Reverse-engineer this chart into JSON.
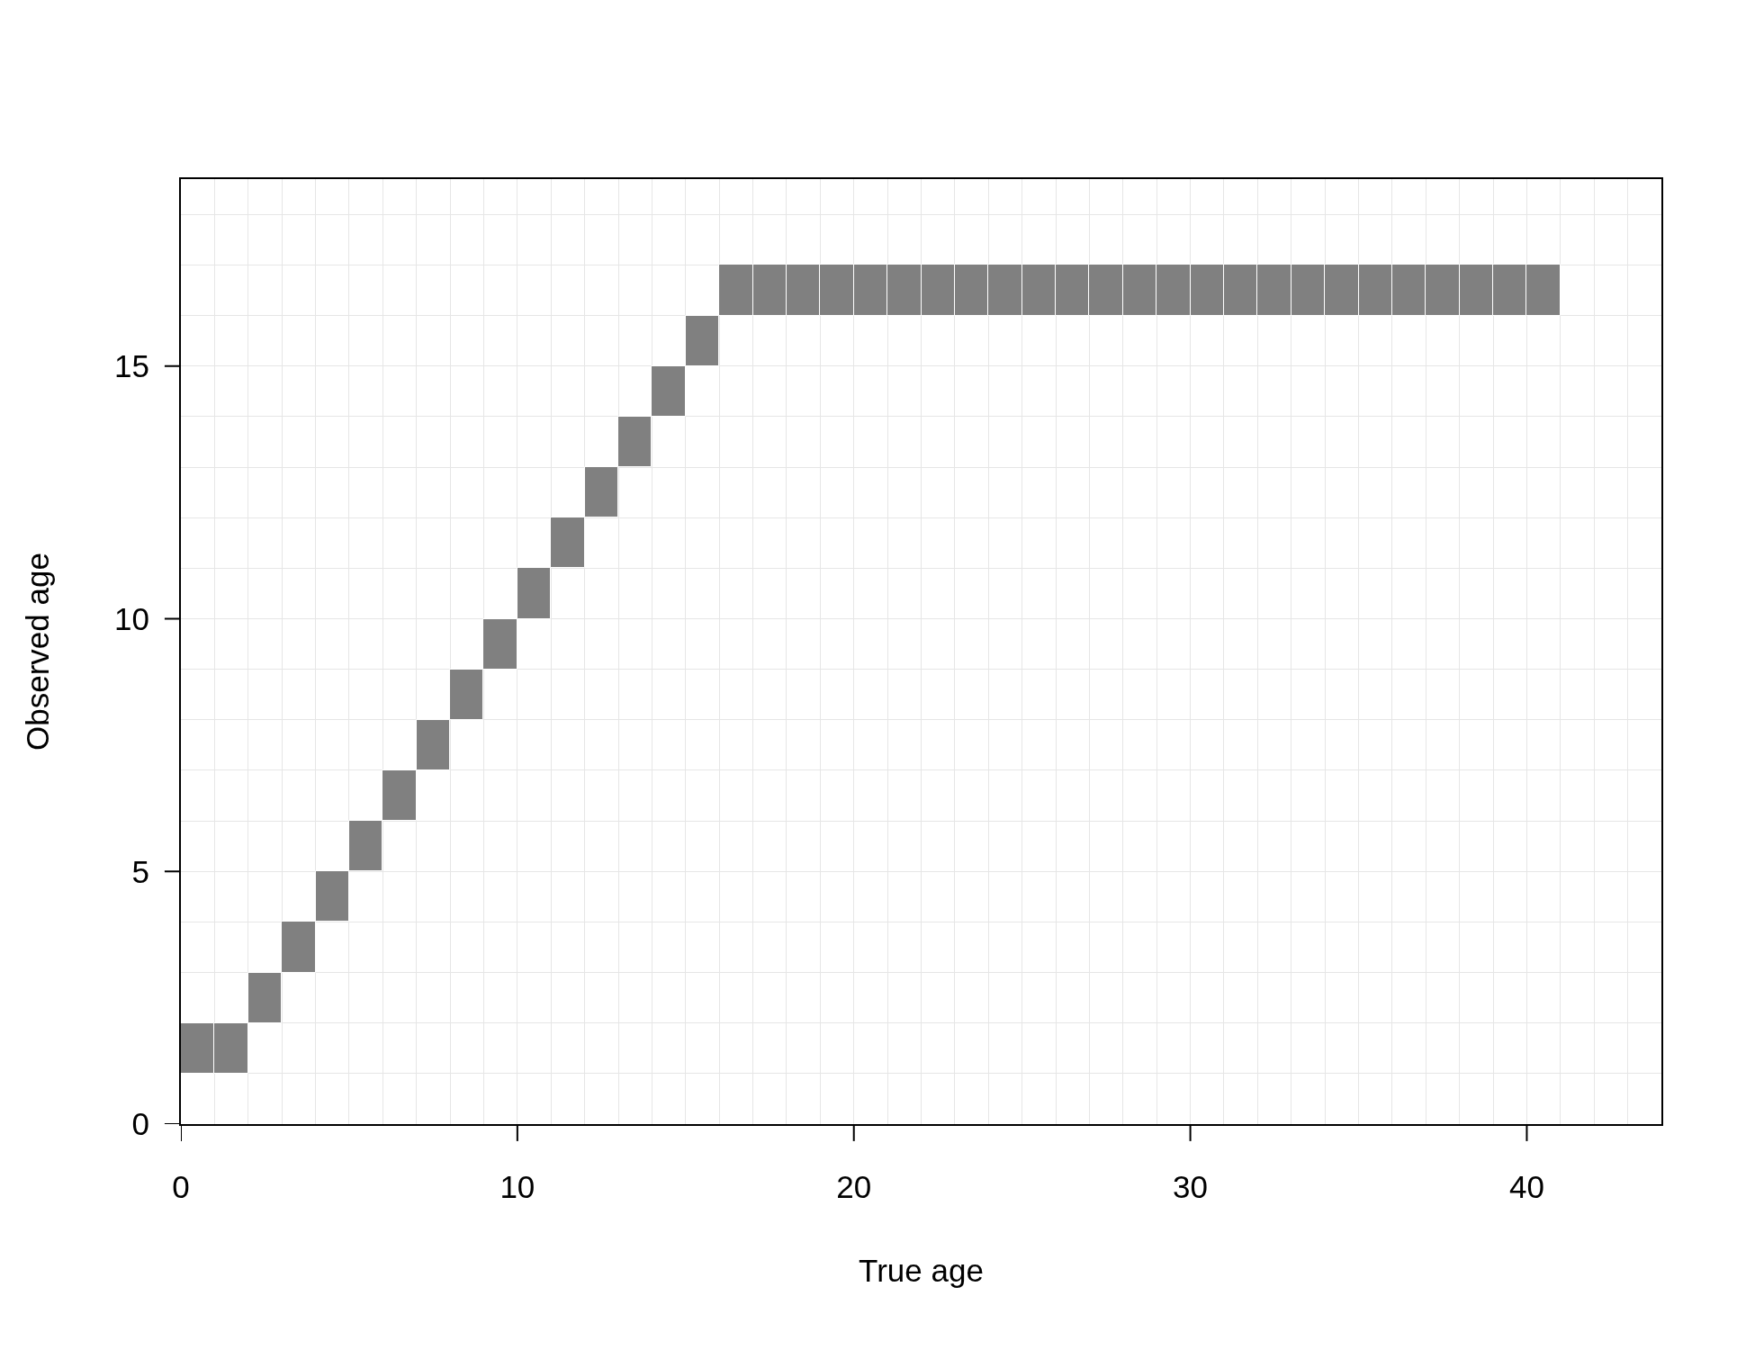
{
  "chart_data": {
    "type": "bar",
    "xlabel": "True age",
    "ylabel": "Observed age",
    "x": [
      0.5,
      1.5,
      2.5,
      3.5,
      4.5,
      5.5,
      6.5,
      7.5,
      8.5,
      9.5,
      10.5,
      11.5,
      12.5,
      13.5,
      14.5,
      15.5,
      16.5,
      17.5,
      18.5,
      19.5,
      20.5,
      21.5,
      22.5,
      23.5,
      24.5,
      25.5,
      26.5,
      27.5,
      28.5,
      29.5,
      30.5,
      31.5,
      32.5,
      33.5,
      34.5,
      35.5,
      36.5,
      37.5,
      38.5,
      39.5,
      40.5
    ],
    "values": [
      1,
      1,
      1,
      1,
      1,
      1,
      1,
      1,
      1,
      1,
      1,
      1,
      1,
      1,
      1,
      1,
      1,
      1,
      1,
      1,
      1,
      1,
      1,
      1,
      1,
      1,
      1,
      1,
      1,
      1,
      1,
      1,
      1,
      1,
      1,
      1,
      1,
      1,
      1,
      1,
      1
    ],
    "base": [
      1,
      1,
      2,
      3,
      4,
      5,
      6,
      7,
      8,
      9,
      10,
      11,
      12,
      13,
      14,
      15,
      16,
      16,
      16,
      16,
      16,
      16,
      16,
      16,
      16,
      16,
      16,
      16,
      16,
      16,
      16,
      16,
      16,
      16,
      16,
      16,
      16,
      16,
      16,
      16,
      16
    ],
    "color": "#808080",
    "xlim": [
      0,
      44
    ],
    "xticks": [
      0,
      {
        "value": 1,
        "label": null
      },
      {
        "value": 2,
        "label": null
      },
      {
        "value": 3,
        "label": null
      },
      {
        "value": 4,
        "label": null
      },
      {
        "value": 5,
        "label": null
      },
      {
        "value": 6,
        "label": null
      },
      {
        "value": 7,
        "label": null
      },
      {
        "value": 8,
        "label": null
      },
      {
        "value": 9,
        "label": null
      },
      10,
      {
        "value": 11,
        "label": null
      },
      {
        "value": 12,
        "label": null
      },
      {
        "value": 13,
        "label": null
      },
      {
        "value": 14,
        "label": null
      },
      {
        "value": 15,
        "label": null
      },
      {
        "value": 16,
        "label": null
      },
      {
        "value": 17,
        "label": null
      },
      {
        "value": 18,
        "label": null
      },
      {
        "value": 19,
        "label": null
      },
      20,
      {
        "value": 21,
        "label": null
      },
      {
        "value": 22,
        "label": null
      },
      {
        "value": 23,
        "label": null
      },
      {
        "value": 24,
        "label": null
      },
      {
        "value": 25,
        "label": null
      },
      {
        "value": 26,
        "label": null
      },
      {
        "value": 27,
        "label": null
      },
      {
        "value": 28,
        "label": null
      },
      {
        "value": 29,
        "label": null
      },
      30,
      {
        "value": 31,
        "label": null
      },
      {
        "value": 32,
        "label": null
      },
      {
        "value": 33,
        "label": null
      },
      {
        "value": 34,
        "label": null
      },
      {
        "value": 35,
        "label": null
      },
      {
        "value": 36,
        "label": null
      },
      {
        "value": 37,
        "label": null
      },
      {
        "value": 38,
        "label": null
      },
      {
        "value": 39,
        "label": null
      },
      40,
      {
        "value": 41,
        "label": null
      },
      {
        "value": 42,
        "label": null
      },
      {
        "value": 43,
        "label": null
      },
      {
        "value": 44,
        "label": null
      }
    ],
    "ylim": [
      0,
      18.7
    ],
    "yticks": [
      0,
      {
        "value": 1,
        "label": null
      },
      {
        "value": 2,
        "label": null
      },
      {
        "value": 3,
        "label": null
      },
      {
        "value": 4,
        "label": null
      },
      5,
      {
        "value": 6,
        "label": null
      },
      {
        "value": 7,
        "label": null
      },
      {
        "value": 8,
        "label": null
      },
      {
        "value": 9,
        "label": null
      },
      10,
      {
        "value": 11,
        "label": null
      },
      {
        "value": 12,
        "label": null
      },
      {
        "value": 13,
        "label": null
      },
      {
        "value": 14,
        "label": null
      },
      15,
      {
        "value": 16,
        "label": null
      },
      {
        "value": 17,
        "label": null
      },
      {
        "value": 18,
        "label": null
      }
    ],
    "grid": true
  }
}
